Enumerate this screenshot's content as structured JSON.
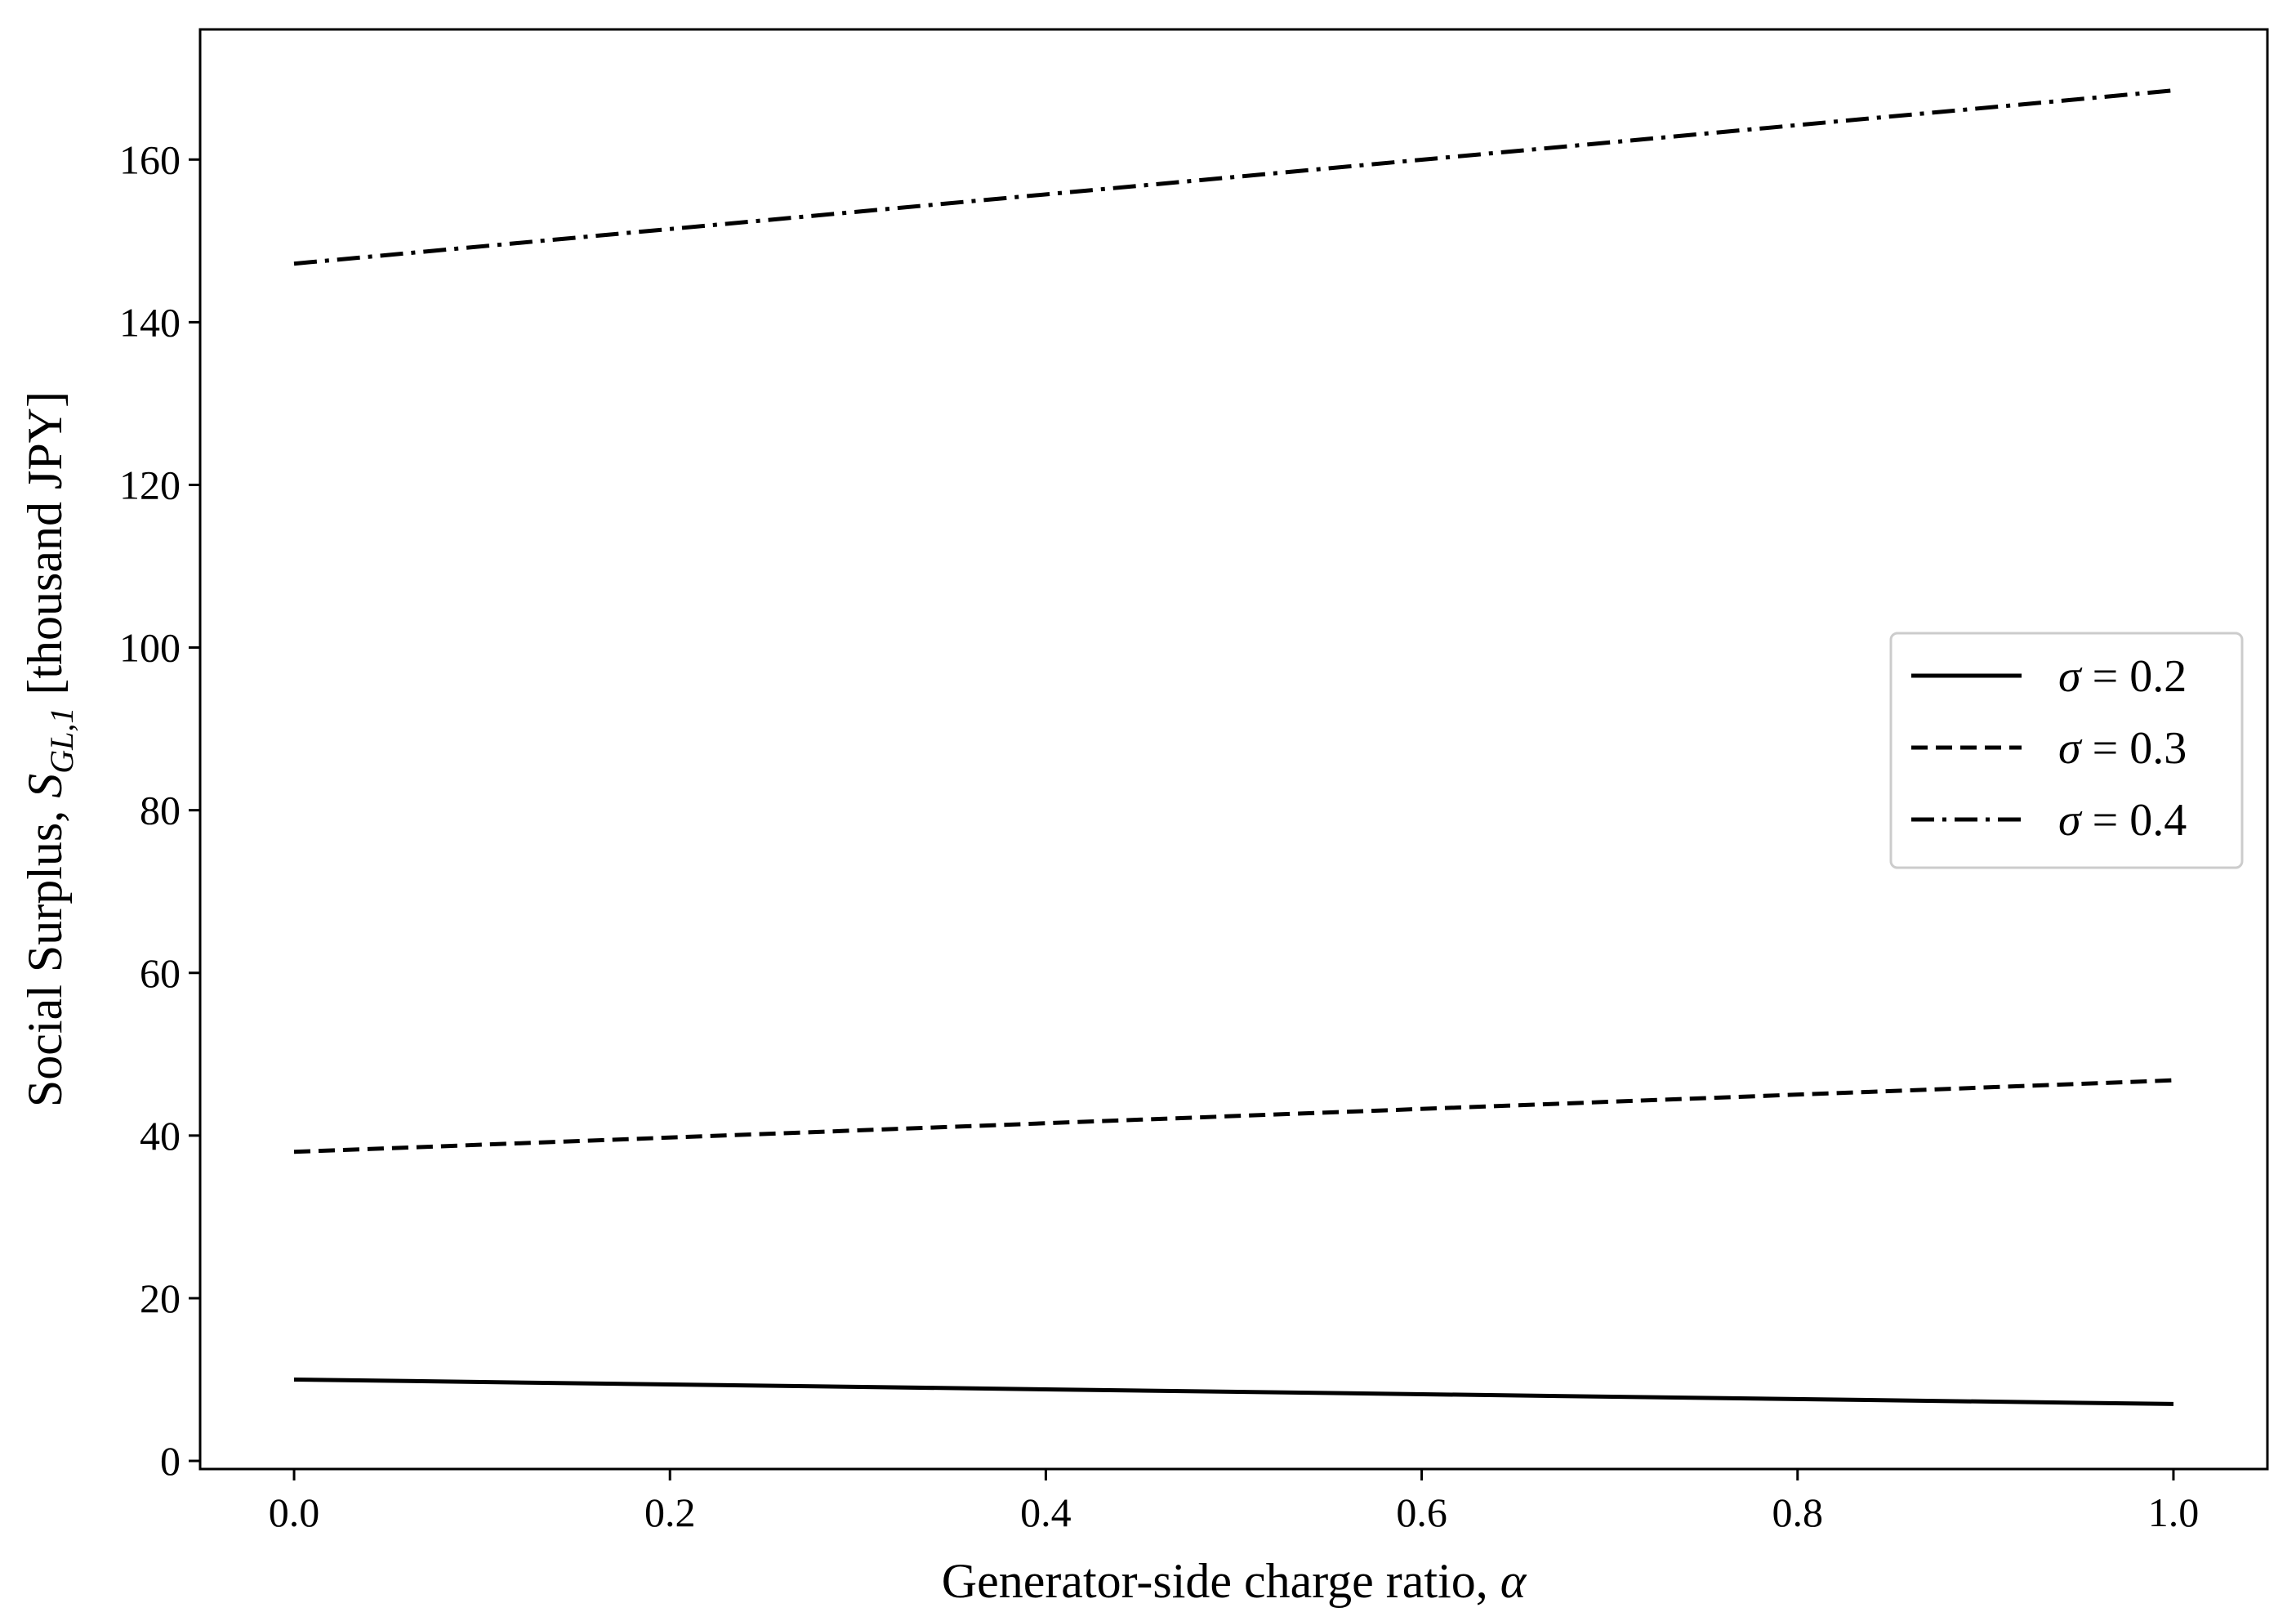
{
  "chart_data": {
    "type": "line",
    "title": "",
    "xlabel": {
      "text": "Generator-side charge ratio, ",
      "symbol": "α"
    },
    "ylabel": {
      "text": "Social Surplus, ",
      "symbol": "S",
      "subscript": "GL,1",
      "unit": " [thousand JPY]"
    },
    "xlim": [
      -0.05,
      1.05
    ],
    "ylim": [
      -1,
      176
    ],
    "xticks": [
      "0.0",
      "0.2",
      "0.4",
      "0.6",
      "0.8",
      "1.0"
    ],
    "yticks": [
      "0",
      "20",
      "40",
      "60",
      "80",
      "100",
      "120",
      "140",
      "160"
    ],
    "grid": false,
    "legend_position": "center-right",
    "x": [
      0.0,
      1.0
    ],
    "series": [
      {
        "name": "σ = 0.2",
        "symbol": "σ",
        "equals": " = 0.2",
        "style": "solid",
        "color": "#000000",
        "values": [
          10.0,
          7.0
        ]
      },
      {
        "name": "σ = 0.3",
        "symbol": "σ",
        "equals": " = 0.3",
        "style": "dashed",
        "color": "#000000",
        "values": [
          38.0,
          46.8
        ]
      },
      {
        "name": "σ = 0.4",
        "symbol": "σ",
        "equals": " = 0.4",
        "style": "dashdot",
        "color": "#000000",
        "values": [
          147.2,
          168.5
        ]
      }
    ]
  }
}
